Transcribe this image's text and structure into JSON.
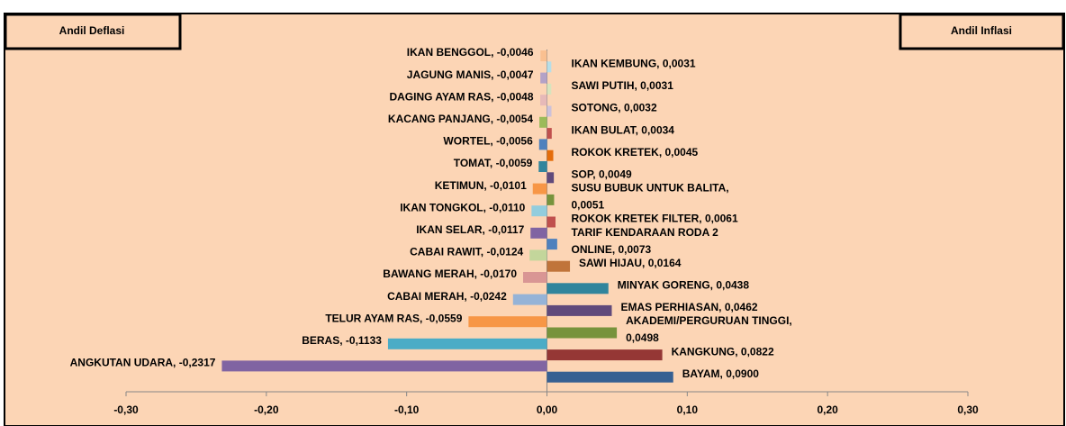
{
  "chart_data": {
    "type": "bar",
    "orientation": "horizontal",
    "xlim": [
      -0.3,
      0.3
    ],
    "xticks": [
      {
        "value": -0.3,
        "label": "-0,30"
      },
      {
        "value": -0.2,
        "label": "-0,20"
      },
      {
        "value": -0.1,
        "label": "-0,10"
      },
      {
        "value": 0,
        "label": "0,00"
      },
      {
        "value": 0.1,
        "label": "0,10"
      },
      {
        "value": 0.2,
        "label": "0,20"
      },
      {
        "value": 0.3,
        "label": "0,30"
      }
    ],
    "grid": false,
    "series": [
      {
        "name": "Andil Deflasi",
        "values": [
          -0.0046,
          -0.0047,
          -0.0048,
          -0.0054,
          -0.0056,
          -0.0059,
          -0.0101,
          -0.011,
          -0.0117,
          -0.0124,
          -0.017,
          -0.0242,
          -0.0559,
          -0.1133,
          -0.2317
        ],
        "value_labels": [
          [
            "IKAN BENGGOL, -0,0046"
          ],
          [
            "JAGUNG MANIS, -0,0047"
          ],
          [
            "DAGING AYAM RAS, -0,0048"
          ],
          [
            "KACANG PANJANG, -0,0054"
          ],
          [
            "WORTEL, -0,0056"
          ],
          [
            "TOMAT, -0,0059"
          ],
          [
            "KETIMUN, -0,0101"
          ],
          [
            "IKAN TONGKOL, -0,0110"
          ],
          [
            "IKAN SELAR, -0,0117"
          ],
          [
            "CABAI RAWIT, -0,0124"
          ],
          [
            "BAWANG MERAH, -0,0170"
          ],
          [
            "CABAI MERAH, -0,0242"
          ],
          [
            "TELUR AYAM RAS, -0,0559"
          ],
          [
            "BERAS, -0,1133"
          ],
          [
            "ANGKUTAN UDARA, -0,2317"
          ]
        ],
        "colors": [
          "#fac090",
          "#b3a2c7",
          "#e6b9b8",
          "#9bbb59",
          "#4f81bd",
          "#31859c",
          "#f79646",
          "#93cddd",
          "#8064a2",
          "#c3d69b",
          "#d99694",
          "#95b3d7",
          "#f79646",
          "#4bacc6",
          "#8064a2"
        ]
      },
      {
        "name": "Andil Inflasi",
        "values": [
          0.0031,
          0.0031,
          0.0032,
          0.0034,
          0.0045,
          0.0049,
          0.0051,
          0.0061,
          0.0073,
          0.0164,
          0.0438,
          0.0462,
          0.0498,
          0.0822,
          0.09
        ],
        "value_labels": [
          [
            "IKAN KEMBUNG, 0,0031"
          ],
          [
            "SAWI PUTIH, 0,0031"
          ],
          [
            "SOTONG, 0,0032"
          ],
          [
            "IKAN BULAT, 0,0034"
          ],
          [
            "ROKOK KRETEK, 0,0045"
          ],
          [
            "SOP, 0,0049"
          ],
          [
            "SUSU BUBUK UNTUK BALITA,",
            "0,0051"
          ],
          [
            "ROKOK KRETEK FILTER, 0,0061"
          ],
          [
            "TARIF KENDARAAN RODA 2",
            "ONLINE, 0,0073"
          ],
          [
            "SAWI HIJAU, 0,0164"
          ],
          [
            "MINYAK GORENG, 0,0438"
          ],
          [
            "EMAS PERHIASAN, 0,0462"
          ],
          [
            "AKADEMI/PERGURUAN TINGGI,",
            "0,0498"
          ],
          [
            "KANGKUNG, 0,0822"
          ],
          [
            "BAYAM, 0,0900"
          ]
        ],
        "colors": [
          "#b7dee8",
          "#d7e4bd",
          "#ccc1da",
          "#c0504d",
          "#e46c0a",
          "#604a7b",
          "#77933c",
          "#c0504d",
          "#4f81bd",
          "#c0743a",
          "#31859c",
          "#604a7b",
          "#77933c",
          "#953735",
          "#376092"
        ]
      }
    ]
  }
}
